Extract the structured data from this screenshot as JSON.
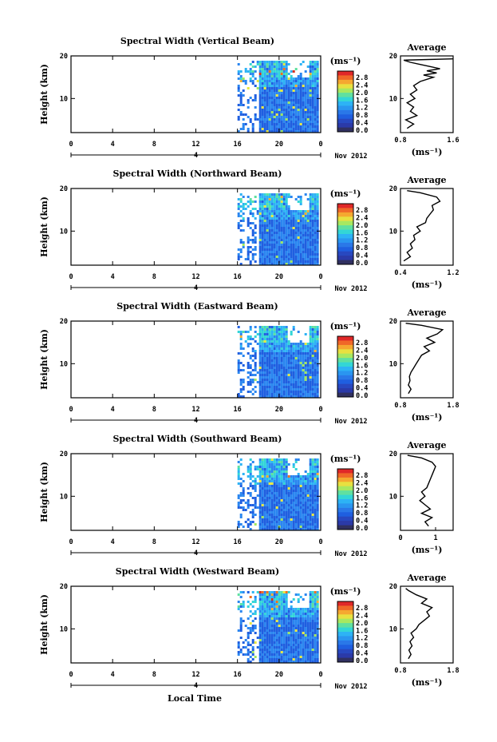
{
  "footer_label": "Local Time",
  "panels": [
    {
      "title": "Spectral Width (Vertical Beam)",
      "data_start_hour": 16,
      "avg_min": 0.8,
      "avg_max": 1.6,
      "avg_ticks": [
        "0.8",
        "1.6"
      ],
      "avg_profile": [
        [
          0.9,
          3
        ],
        [
          1.0,
          4
        ],
        [
          0.88,
          5
        ],
        [
          1.05,
          6
        ],
        [
          0.95,
          7
        ],
        [
          1.0,
          8
        ],
        [
          0.9,
          9
        ],
        [
          1.02,
          10
        ],
        [
          0.95,
          11
        ],
        [
          1.05,
          12
        ],
        [
          1.0,
          13
        ],
        [
          1.1,
          14
        ],
        [
          1.3,
          15
        ],
        [
          1.15,
          15.5
        ],
        [
          1.35,
          16
        ],
        [
          1.2,
          16.5
        ],
        [
          1.4,
          17
        ],
        [
          1.25,
          17.5
        ],
        [
          1.1,
          18
        ],
        [
          0.95,
          18.5
        ],
        [
          0.85,
          19
        ],
        [
          1.6,
          19.3
        ]
      ]
    },
    {
      "title": "Spectral Width (Northward Beam)",
      "data_start_hour": 16,
      "avg_min": 0.4,
      "avg_max": 1.2,
      "avg_ticks": [
        "0.4",
        "1.2"
      ],
      "avg_profile": [
        [
          0.45,
          3
        ],
        [
          0.55,
          4
        ],
        [
          0.5,
          5
        ],
        [
          0.58,
          6
        ],
        [
          0.55,
          7
        ],
        [
          0.62,
          8
        ],
        [
          0.6,
          9
        ],
        [
          0.7,
          10
        ],
        [
          0.65,
          11
        ],
        [
          0.78,
          12
        ],
        [
          0.8,
          13
        ],
        [
          0.85,
          14
        ],
        [
          0.9,
          15
        ],
        [
          0.88,
          16
        ],
        [
          1.0,
          17
        ],
        [
          0.95,
          18
        ],
        [
          0.7,
          19
        ],
        [
          0.5,
          19.5
        ]
      ]
    },
    {
      "title": "Spectral Width (Eastward Beam)",
      "data_start_hour": 16,
      "avg_min": 0.8,
      "avg_max": 1.8,
      "avg_ticks": [
        "0.8",
        "1.8"
      ],
      "avg_profile": [
        [
          0.95,
          3
        ],
        [
          1.0,
          4
        ],
        [
          0.95,
          5
        ],
        [
          0.98,
          6
        ],
        [
          0.97,
          7
        ],
        [
          1.0,
          8
        ],
        [
          1.05,
          9
        ],
        [
          1.1,
          10
        ],
        [
          1.15,
          11
        ],
        [
          1.2,
          12
        ],
        [
          1.35,
          13
        ],
        [
          1.25,
          14
        ],
        [
          1.45,
          15
        ],
        [
          1.3,
          16
        ],
        [
          1.5,
          17
        ],
        [
          1.6,
          18
        ],
        [
          1.2,
          19
        ],
        [
          0.9,
          19.5
        ]
      ]
    },
    {
      "title": "Spectral Width (Southward Beam)",
      "data_start_hour": 16,
      "avg_min": 0,
      "avg_max": 1.5,
      "avg_ticks": [
        "0",
        "1"
      ],
      "avg_profile": [
        [
          0.8,
          3
        ],
        [
          0.7,
          4
        ],
        [
          0.9,
          5
        ],
        [
          0.6,
          6
        ],
        [
          0.85,
          7
        ],
        [
          0.7,
          8
        ],
        [
          0.55,
          9
        ],
        [
          0.7,
          10
        ],
        [
          0.6,
          11
        ],
        [
          0.75,
          12
        ],
        [
          0.8,
          13
        ],
        [
          0.85,
          14
        ],
        [
          0.9,
          15
        ],
        [
          0.95,
          16
        ],
        [
          1.0,
          17
        ],
        [
          0.9,
          18
        ],
        [
          0.6,
          19
        ],
        [
          0.2,
          19.6
        ]
      ]
    },
    {
      "title": "Spectral Width (Westward Beam)",
      "data_start_hour": 16,
      "avg_min": 0.8,
      "avg_max": 1.8,
      "avg_ticks": [
        "0.8",
        "1.8"
      ],
      "avg_profile": [
        [
          0.95,
          3
        ],
        [
          1.0,
          4
        ],
        [
          0.96,
          5
        ],
        [
          1.02,
          6
        ],
        [
          0.98,
          7
        ],
        [
          1.05,
          8
        ],
        [
          1.0,
          9
        ],
        [
          1.1,
          10
        ],
        [
          1.15,
          11
        ],
        [
          1.25,
          12
        ],
        [
          1.35,
          13
        ],
        [
          1.3,
          14
        ],
        [
          1.4,
          15
        ],
        [
          1.2,
          16
        ],
        [
          1.3,
          17
        ],
        [
          1.1,
          18
        ],
        [
          0.95,
          19
        ],
        [
          0.9,
          19.5
        ]
      ]
    }
  ],
  "chart_data": {
    "type": "heatmap",
    "ylabel": "Height (km)",
    "ylim": [
      2,
      20
    ],
    "yticks": [
      "20",
      "10"
    ],
    "x_ticks": [
      "0",
      "4",
      "8",
      "12",
      "16",
      "20",
      "0"
    ],
    "date_marker": "4",
    "month_label": "Nov 2012",
    "colorbar": {
      "unit": "(ms⁻¹)",
      "ticks": [
        "2.8",
        "2.4",
        "2.0",
        "1.6",
        "1.2",
        "0.8",
        "0.4",
        "0.0"
      ]
    },
    "avg_title": "Average",
    "avg_xlabel": "(ms⁻¹)",
    "avg_yticks": [
      "20",
      "10"
    ]
  }
}
